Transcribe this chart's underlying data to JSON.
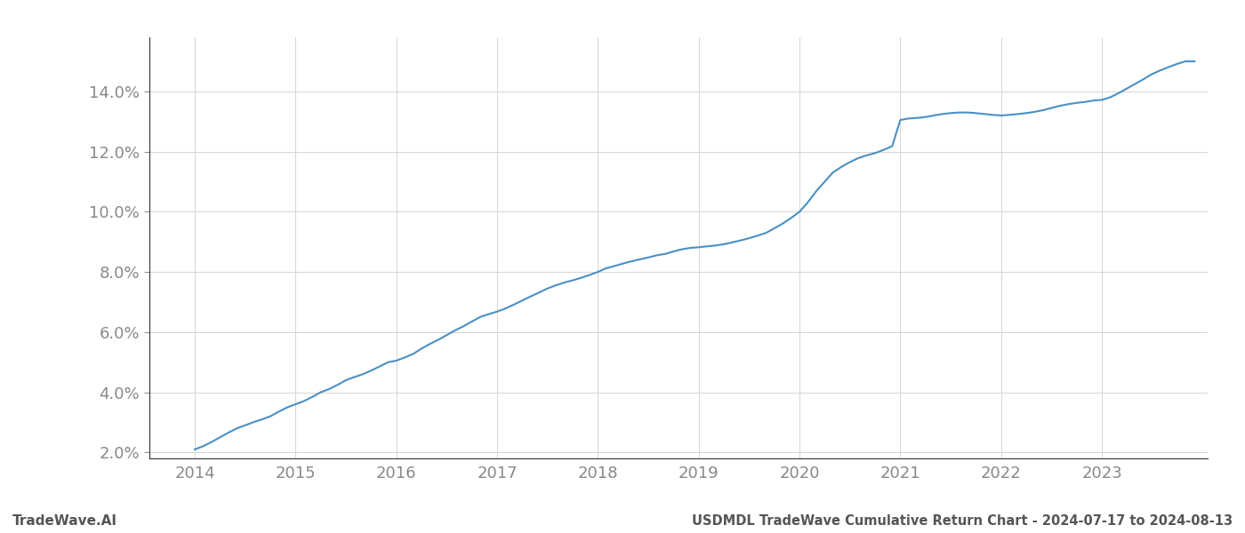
{
  "title": "USDMDL TradeWave Cumulative Return Chart - 2024-07-17 to 2024-08-13",
  "watermark": "TradeWave.AI",
  "line_color": "#4a90c4",
  "background_color": "#ffffff",
  "grid_color": "#cccccc",
  "x_years": [
    2014,
    2015,
    2016,
    2017,
    2018,
    2019,
    2020,
    2021,
    2022,
    2023
  ],
  "x_data": [
    2014.0,
    2014.08,
    2014.17,
    2014.25,
    2014.33,
    2014.42,
    2014.5,
    2014.58,
    2014.67,
    2014.75,
    2014.83,
    2014.92,
    2015.0,
    2015.08,
    2015.17,
    2015.25,
    2015.33,
    2015.42,
    2015.5,
    2015.58,
    2015.67,
    2015.75,
    2015.83,
    2015.92,
    2016.0,
    2016.08,
    2016.17,
    2016.25,
    2016.33,
    2016.42,
    2016.5,
    2016.58,
    2016.67,
    2016.75,
    2016.83,
    2016.92,
    2017.0,
    2017.08,
    2017.17,
    2017.25,
    2017.33,
    2017.42,
    2017.5,
    2017.58,
    2017.67,
    2017.75,
    2017.83,
    2017.92,
    2018.0,
    2018.08,
    2018.17,
    2018.25,
    2018.33,
    2018.42,
    2018.5,
    2018.58,
    2018.67,
    2018.75,
    2018.83,
    2018.92,
    2019.0,
    2019.08,
    2019.17,
    2019.25,
    2019.33,
    2019.42,
    2019.5,
    2019.58,
    2019.67,
    2019.75,
    2019.83,
    2019.92,
    2020.0,
    2020.08,
    2020.17,
    2020.25,
    2020.33,
    2020.42,
    2020.5,
    2020.58,
    2020.67,
    2020.75,
    2020.83,
    2020.92,
    2021.0,
    2021.08,
    2021.17,
    2021.25,
    2021.33,
    2021.42,
    2021.5,
    2021.58,
    2021.67,
    2021.75,
    2021.83,
    2021.92,
    2022.0,
    2022.08,
    2022.17,
    2022.25,
    2022.33,
    2022.42,
    2022.5,
    2022.58,
    2022.67,
    2022.75,
    2022.83,
    2022.92,
    2023.0,
    2023.08,
    2023.17,
    2023.25,
    2023.33,
    2023.42,
    2023.5,
    2023.58,
    2023.67,
    2023.75,
    2023.83,
    2023.92
  ],
  "y_data": [
    2.1,
    2.2,
    2.35,
    2.5,
    2.65,
    2.8,
    2.9,
    3.0,
    3.1,
    3.2,
    3.35,
    3.5,
    3.6,
    3.7,
    3.85,
    4.0,
    4.1,
    4.25,
    4.4,
    4.5,
    4.6,
    4.72,
    4.85,
    5.0,
    5.05,
    5.15,
    5.28,
    5.45,
    5.6,
    5.75,
    5.9,
    6.05,
    6.2,
    6.35,
    6.5,
    6.6,
    6.68,
    6.78,
    6.92,
    7.05,
    7.18,
    7.32,
    7.45,
    7.55,
    7.65,
    7.72,
    7.8,
    7.9,
    8.0,
    8.12,
    8.2,
    8.28,
    8.35,
    8.42,
    8.48,
    8.55,
    8.6,
    8.68,
    8.75,
    8.8,
    8.82,
    8.85,
    8.88,
    8.92,
    8.98,
    9.05,
    9.12,
    9.2,
    9.3,
    9.45,
    9.6,
    9.8,
    10.0,
    10.3,
    10.7,
    11.0,
    11.3,
    11.5,
    11.65,
    11.78,
    11.88,
    11.95,
    12.05,
    12.18,
    13.05,
    13.1,
    13.12,
    13.15,
    13.2,
    13.25,
    13.28,
    13.3,
    13.3,
    13.28,
    13.25,
    13.22,
    13.2,
    13.22,
    13.25,
    13.28,
    13.32,
    13.38,
    13.45,
    13.52,
    13.58,
    13.62,
    13.65,
    13.7,
    13.72,
    13.8,
    13.95,
    14.1,
    14.25,
    14.42,
    14.58,
    14.7,
    14.82,
    14.92,
    15.0,
    15.0
  ],
  "ylim": [
    1.8,
    15.8
  ],
  "yticks": [
    2.0,
    4.0,
    6.0,
    8.0,
    10.0,
    12.0,
    14.0
  ],
  "xlim": [
    2013.55,
    2024.05
  ],
  "text_color": "#888888",
  "spine_color": "#333333",
  "grid_color_hex": "#d5d5d5",
  "line_width": 1.5,
  "title_fontsize": 10.5,
  "tick_fontsize": 13,
  "watermark_fontsize": 11,
  "footer_color": "#555555"
}
